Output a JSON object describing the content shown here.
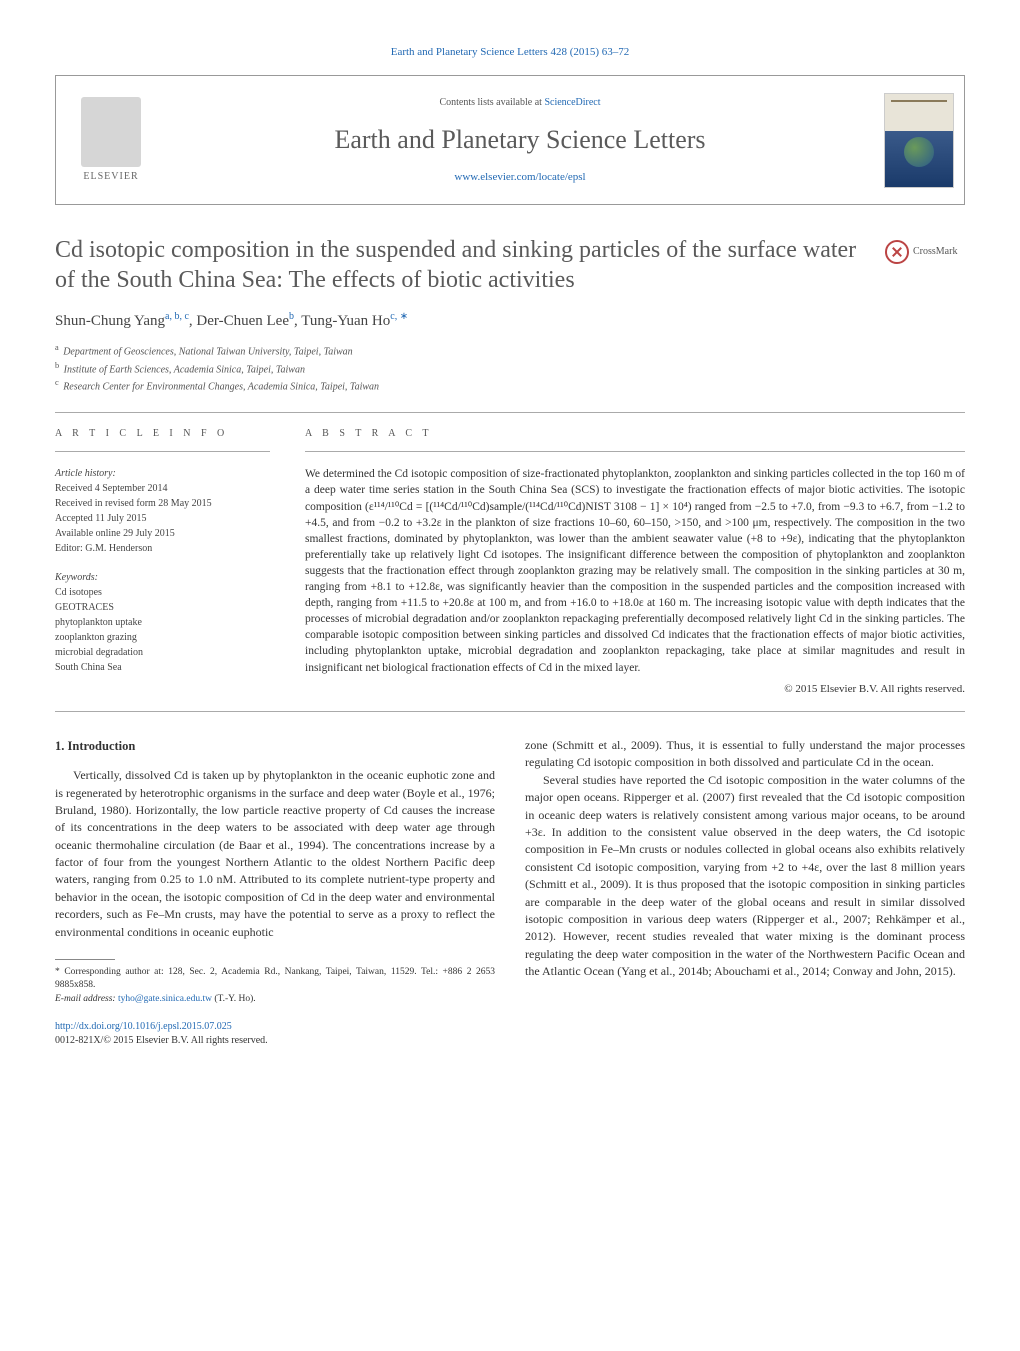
{
  "journal_ref_top": "Earth and Planetary Science Letters 428 (2015) 63–72",
  "header": {
    "publisher_name": "ELSEVIER",
    "contents_prefix": "Contents lists available at ",
    "contents_link": "ScienceDirect",
    "journal_name": "Earth and Planetary Science Letters",
    "locate_url": "www.elsevier.com/locate/epsl",
    "cover_label": "EARTH"
  },
  "article": {
    "title": "Cd isotopic composition in the suspended and sinking particles of the surface water of the South China Sea: The effects of biotic activities",
    "crossmark_label": "CrossMark",
    "authors_html": "Shun-Chung Yang",
    "author_sup_1": "a, b, c",
    "author_2": ", Der-Chuen Lee",
    "author_sup_2": "b",
    "author_3": ", Tung-Yuan Ho",
    "author_sup_3": "c, ∗",
    "affiliations": {
      "a": "Department of Geosciences, National Taiwan University, Taipei, Taiwan",
      "b": "Institute of Earth Sciences, Academia Sinica, Taipei, Taiwan",
      "c": "Research Center for Environmental Changes, Academia Sinica, Taipei, Taiwan"
    }
  },
  "info": {
    "heading": "a r t i c l e   i n f o",
    "history_label": "Article history:",
    "received": "Received 4 September 2014",
    "revised": "Received in revised form 28 May 2015",
    "accepted": "Accepted 11 July 2015",
    "online": "Available online 29 July 2015",
    "editor": "Editor: G.M. Henderson",
    "keywords_label": "Keywords:",
    "keywords": [
      "Cd isotopes",
      "GEOTRACES",
      "phytoplankton uptake",
      "zooplankton grazing",
      "microbial degradation",
      "South China Sea"
    ]
  },
  "abstract": {
    "heading": "a b s t r a c t",
    "text": "We determined the Cd isotopic composition of size-fractionated phytoplankton, zooplankton and sinking particles collected in the top 160 m of a deep water time series station in the South China Sea (SCS) to investigate the fractionation effects of major biotic activities. The isotopic composition (ε¹¹⁴/¹¹⁰Cd = [(¹¹⁴Cd/¹¹⁰Cd)sample/(¹¹⁴Cd/¹¹⁰Cd)NIST 3108 − 1] × 10⁴) ranged from −2.5 to +7.0, from −9.3 to +6.7, from −1.2 to +4.5, and from −0.2 to +3.2ε in the plankton of size fractions 10–60, 60–150, >150, and >100 μm, respectively. The composition in the two smallest fractions, dominated by phytoplankton, was lower than the ambient seawater value (+8 to +9ε), indicating that the phytoplankton preferentially take up relatively light Cd isotopes. The insignificant difference between the composition of phytoplankton and zooplankton suggests that the fractionation effect through zooplankton grazing may be relatively small. The composition in the sinking particles at 30 m, ranging from +8.1 to +12.8ε, was significantly heavier than the composition in the suspended particles and the composition increased with depth, ranging from +11.5 to +20.8ε at 100 m, and from +16.0 to +18.0ε at 160 m. The increasing isotopic value with depth indicates that the processes of microbial degradation and/or zooplankton repackaging preferentially decomposed relatively light Cd in the sinking particles. The comparable isotopic composition between sinking particles and dissolved Cd indicates that the fractionation effects of major biotic activities, including phytoplankton uptake, microbial degradation and zooplankton repackaging, take place at similar magnitudes and result in insignificant net biological fractionation effects of Cd in the mixed layer.",
    "copyright": "© 2015 Elsevier B.V. All rights reserved."
  },
  "body": {
    "section_heading": "1. Introduction",
    "col1_p1": "Vertically, dissolved Cd is taken up by phytoplankton in the oceanic euphotic zone and is regenerated by heterotrophic organisms in the surface and deep water (Boyle et al., 1976; Bruland, 1980). Horizontally, the low particle reactive property of Cd causes the increase of its concentrations in the deep waters to be associated with deep water age through oceanic thermohaline circulation (de Baar et al., 1994). The concentrations increase by a factor of four from the youngest Northern Atlantic to the oldest Northern Pacific deep waters, ranging from 0.25 to 1.0 nM. Attributed to its complete nutrient-type property and behavior in the ocean, the isotopic composition of Cd in the deep water and environmental recorders, such as Fe–Mn crusts, may have the potential to serve as a proxy to reflect the environmental conditions in oceanic euphotic",
    "col2_p1": "zone (Schmitt et al., 2009). Thus, it is essential to fully understand the major processes regulating Cd isotopic composition in both dissolved and particulate Cd in the ocean.",
    "col2_p2": "Several studies have reported the Cd isotopic composition in the water columns of the major open oceans. Ripperger et al. (2007) first revealed that the Cd isotopic composition in oceanic deep waters is relatively consistent among various major oceans, to be around +3ε. In addition to the consistent value observed in the deep waters, the Cd isotopic composition in Fe–Mn crusts or nodules collected in global oceans also exhibits relatively consistent Cd isotopic composition, varying from +2 to +4ε, over the last 8 million years (Schmitt et al., 2009). It is thus proposed that the isotopic composition in sinking particles are comparable in the deep water of the global oceans and result in similar dissolved isotopic composition in various deep waters (Ripperger et al., 2007; Rehkämper et al., 2012). However, recent studies revealed that water mixing is the dominant process regulating the deep water composition in the water of the Northwestern Pacific Ocean and the Atlantic Ocean (Yang et al., 2014b; Abouchami et al., 2014; Conway and John, 2015)."
  },
  "footnotes": {
    "corr": "Corresponding author at: 128, Sec. 2, Academia Rd., Nankang, Taipei, Taiwan, 11529. Tel.: +886 2 2653 9885x858.",
    "email_label": "E-mail address:",
    "email": "tyho@gate.sinica.edu.tw",
    "email_who": "(T.-Y. Ho).",
    "doi": "http://dx.doi.org/10.1016/j.epsl.2015.07.025",
    "issn_copy": "0012-821X/© 2015 Elsevier B.V. All rights reserved."
  },
  "colors": {
    "link": "#2269b3",
    "text": "#333333",
    "heading_gray": "#5a5a5a",
    "border": "#999999"
  }
}
